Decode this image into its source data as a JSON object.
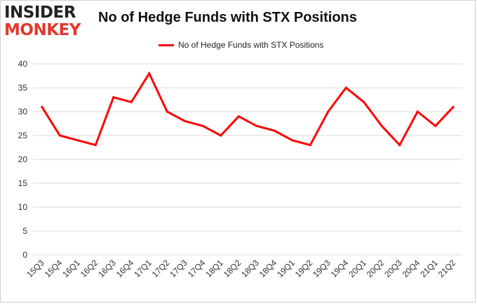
{
  "logo": {
    "line1": "INSIDER",
    "line2": "MONKEY"
  },
  "chart_data": {
    "type": "line",
    "title": "No of Hedge Funds with STX Positions",
    "xlabel": "",
    "ylabel": "",
    "categories": [
      "15Q3",
      "15Q4",
      "16Q1",
      "16Q2",
      "16Q3",
      "16Q4",
      "17Q1",
      "17Q2",
      "17Q3",
      "17Q4",
      "18Q1",
      "18Q2",
      "18Q3",
      "18Q4",
      "19Q1",
      "19Q2",
      "19Q3",
      "19Q4",
      "20Q1",
      "20Q2",
      "20Q3",
      "20Q4",
      "21Q1",
      "21Q2"
    ],
    "series": [
      {
        "name": "No of Hedge Funds with STX Positions",
        "color": "#ff0000",
        "values": [
          31,
          25,
          24,
          23,
          33,
          32,
          38,
          30,
          28,
          27,
          25,
          29,
          27,
          26,
          24,
          23,
          30,
          35,
          32,
          27,
          23,
          30,
          27,
          31
        ]
      }
    ],
    "ylim": [
      0,
      40
    ],
    "yticks": [
      0,
      5,
      10,
      15,
      20,
      25,
      30,
      35,
      40
    ],
    "grid": "horizontal",
    "legend_position": "top-center"
  }
}
